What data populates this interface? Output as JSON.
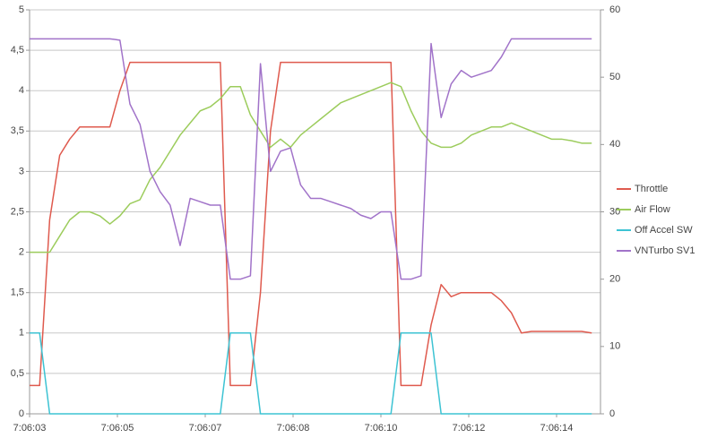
{
  "chart_data": {
    "type": "line",
    "x": [
      3.0,
      3.2,
      3.4,
      3.6,
      3.8,
      4.0,
      4.2,
      4.4,
      4.6,
      4.8,
      5.0,
      5.2,
      5.4,
      5.6,
      5.8,
      6.0,
      6.2,
      6.4,
      6.6,
      6.8,
      7.0,
      7.2,
      7.4,
      7.6,
      7.8,
      8.0,
      8.2,
      8.4,
      8.6,
      8.8,
      9.0,
      9.2,
      9.4,
      9.6,
      9.8,
      10.0,
      10.2,
      10.4,
      10.6,
      10.8,
      11.0,
      11.2,
      11.4,
      11.6,
      11.8,
      12.0,
      12.2,
      12.4,
      12.6,
      12.8,
      13.0,
      13.2,
      13.4,
      13.6,
      13.8,
      14.0,
      14.2
    ],
    "xlim": [
      3,
      14.375
    ],
    "xticks": [
      {
        "value": 3,
        "label": "7:06:03"
      },
      {
        "value": 4.75,
        "label": "7:06:05"
      },
      {
        "value": 6.5,
        "label": "7:06:07"
      },
      {
        "value": 8.25,
        "label": "7:06:08"
      },
      {
        "value": 10,
        "label": "7:06:10"
      },
      {
        "value": 11.75,
        "label": "7:06:12"
      },
      {
        "value": 13.5,
        "label": "7:06:14"
      }
    ],
    "ylim": [
      0,
      5
    ],
    "yticks": [
      0,
      {
        "value": 0.5,
        "label": "0,5"
      },
      1,
      {
        "value": 1.5,
        "label": "1,5"
      },
      2,
      {
        "value": 2.5,
        "label": "2,5"
      },
      3,
      {
        "value": 3.5,
        "label": "3,5"
      },
      4,
      {
        "value": 4.5,
        "label": "4,5"
      },
      5
    ],
    "y2lim": [
      0,
      60
    ],
    "y2ticks": [
      0,
      10,
      20,
      30,
      40,
      50,
      60
    ],
    "grid": true,
    "legend": "right",
    "series": [
      {
        "name": "Throttle",
        "color": "#df5a4e",
        "values": [
          0.35,
          0.35,
          2.4,
          3.2,
          3.4,
          3.55,
          3.55,
          3.55,
          3.55,
          4.0,
          4.35,
          4.35,
          4.35,
          4.35,
          4.35,
          4.35,
          4.35,
          4.35,
          4.35,
          4.35,
          0.35,
          0.35,
          0.35,
          1.5,
          3.5,
          4.35,
          4.35,
          4.35,
          4.35,
          4.35,
          4.35,
          4.35,
          4.35,
          4.35,
          4.35,
          4.35,
          4.35,
          0.35,
          0.35,
          0.35,
          1.1,
          1.6,
          1.45,
          1.5,
          1.5,
          1.5,
          1.5,
          1.4,
          1.25,
          1.0,
          1.02,
          1.02,
          1.02,
          1.02,
          1.02,
          1.02,
          1.0
        ]
      },
      {
        "name": "Air Flow",
        "color": "#9ccc5c",
        "values": [
          2.0,
          2.0,
          2.0,
          2.2,
          2.4,
          2.5,
          2.5,
          2.45,
          2.35,
          2.45,
          2.6,
          2.65,
          2.9,
          3.05,
          3.25,
          3.45,
          3.6,
          3.75,
          3.8,
          3.9,
          4.05,
          4.05,
          3.7,
          3.5,
          3.3,
          3.4,
          3.3,
          3.45,
          3.55,
          3.65,
          3.75,
          3.85,
          3.9,
          3.95,
          4.0,
          4.05,
          4.1,
          4.05,
          3.75,
          3.5,
          3.35,
          3.3,
          3.3,
          3.35,
          3.45,
          3.5,
          3.55,
          3.55,
          3.6,
          3.55,
          3.5,
          3.45,
          3.4,
          3.4,
          3.38,
          3.35,
          3.35
        ]
      },
      {
        "name": "Off Accel SW",
        "color": "#3dc3d3",
        "values": [
          1,
          1,
          0,
          0,
          0,
          0,
          0,
          0,
          0,
          0,
          0,
          0,
          0,
          0,
          0,
          0,
          0,
          0,
          0,
          0,
          1,
          1,
          1,
          0,
          0,
          0,
          0,
          0,
          0,
          0,
          0,
          0,
          0,
          0,
          0,
          0,
          0,
          1,
          1,
          1,
          1,
          0,
          0,
          0,
          0,
          0,
          0,
          0,
          0,
          0,
          0,
          0,
          0,
          0,
          0,
          0,
          0
        ]
      },
      {
        "name": "VNTurbo SV1",
        "color": "#a173c9",
        "axis": "y2",
        "values": [
          55.7,
          55.7,
          55.7,
          55.7,
          55.7,
          55.7,
          55.7,
          55.7,
          55.7,
          55.5,
          46,
          43,
          36,
          33,
          31,
          25,
          32,
          31.5,
          31,
          31,
          20,
          20,
          20.5,
          52,
          36,
          39,
          39.5,
          34,
          32,
          32,
          31.5,
          31,
          30.5,
          29.5,
          29,
          30,
          30,
          20,
          20,
          20.5,
          55,
          44,
          49,
          51,
          50,
          50.5,
          51,
          53,
          55.7,
          55.7,
          55.7,
          55.7,
          55.7,
          55.7,
          55.7,
          55.7,
          55.7
        ]
      }
    ]
  }
}
